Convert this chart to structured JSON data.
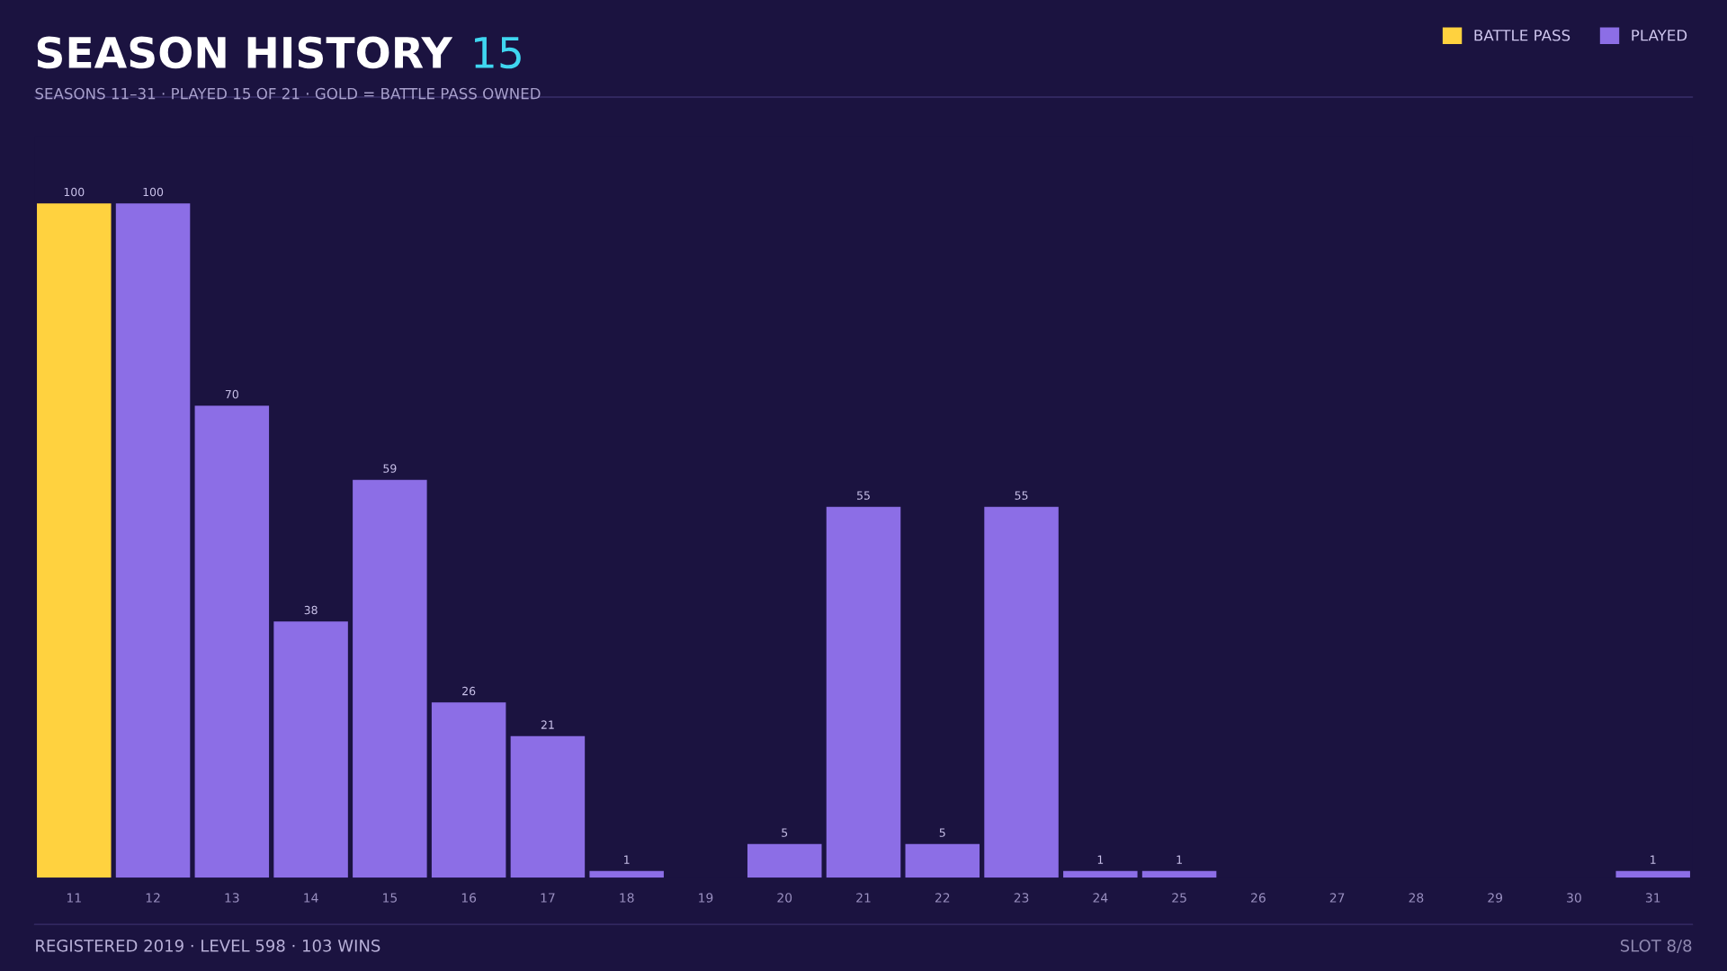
{
  "chart_data": {
    "type": "bar",
    "title": "SEASON HISTORY",
    "subtitle": "SEASONS 11–31 · PLAYED 15 OF 21 · GOLD = BATTLE PASS OWNED",
    "annotations": [
      "15",
      "REGISTERED 2019 · LEVEL 598 · 103 WINS",
      "SLOT 8/8"
    ],
    "categories": [
      "11",
      "12",
      "13",
      "14",
      "15",
      "16",
      "17",
      "18",
      "19",
      "20",
      "21",
      "22",
      "23",
      "24",
      "25",
      "26",
      "27",
      "28",
      "29",
      "30",
      "31"
    ],
    "series": [
      {
        "name": "BATTLE PASS",
        "color": "#ffd23f",
        "values": [
          100,
          null,
          null,
          null,
          null,
          null,
          null,
          null,
          null,
          null,
          null,
          null,
          null,
          null,
          null,
          null,
          null,
          null,
          null,
          null,
          null
        ]
      },
      {
        "name": "PLAYED",
        "color": "#8c6ee6",
        "values": [
          null,
          100,
          70,
          38,
          59,
          26,
          21,
          1,
          0,
          5,
          55,
          5,
          55,
          1,
          1,
          0,
          0,
          0,
          0,
          0,
          1
        ],
        "value_labels": [
          null,
          "100",
          "70",
          "38",
          "59",
          "26",
          "21",
          "1",
          null,
          "5",
          "55",
          "5",
          "55",
          "1",
          "1",
          null,
          null,
          null,
          null,
          null,
          "1"
        ]
      }
    ],
    "data_labels": true,
    "legend": "top right",
    "grid": false
  }
}
